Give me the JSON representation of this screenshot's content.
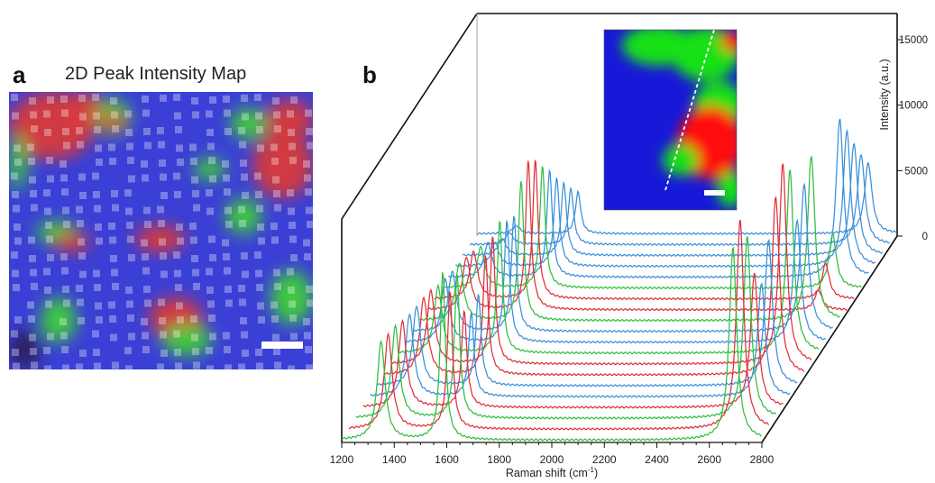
{
  "panel_a": {
    "letter": "a",
    "title": "2D Peak Intensity Map",
    "colors": {
      "low": "#3a3fd6",
      "mid": "#3fcf3a",
      "high": "#d83a3a",
      "edge": "#2b1c5c"
    }
  },
  "panel_b": {
    "letter": "b",
    "inset": {
      "colors": {
        "low": "#1818d8",
        "mid": "#18e018",
        "high": "#ff0a0a"
      }
    }
  },
  "chart_data": {
    "type": "line",
    "title": "",
    "xlabel": "Raman shift (cm",
    "xlabel_sup": "-1",
    "xlabel_suffix": ")",
    "ylabel": "Intensity (a.u.)",
    "xlim": [
      1200,
      2800
    ],
    "ylim": [
      0,
      17000
    ],
    "x_ticks": [
      1200,
      1400,
      1600,
      1800,
      2000,
      2200,
      2400,
      2600,
      2800
    ],
    "y_ticks": [
      0,
      5000,
      10000,
      15000
    ],
    "grid": false,
    "legend": "none",
    "spectrum_colors": {
      "blue": "#3a8fd9",
      "red": "#e0303a",
      "green": "#2fbf3f"
    },
    "peaks_cm": {
      "D": 1350,
      "G": 1585,
      "2D": 2690
    },
    "series": [
      {
        "color": "blue",
        "D": 600,
        "G": 3200,
        "2D": 5400
      },
      {
        "color": "blue",
        "D": 900,
        "G": 4300,
        "2D": 6900
      },
      {
        "color": "blue",
        "D": 1300,
        "G": 5600,
        "2D": 8600
      },
      {
        "color": "blue",
        "D": 1800,
        "G": 6800,
        "2D": 10400
      },
      {
        "color": "blue",
        "D": 2600,
        "G": 8200,
        "2D": 12100
      },
      {
        "color": "green",
        "D": 3100,
        "G": 9300,
        "2D": 4100
      },
      {
        "color": "red",
        "D": 3600,
        "G": 10600,
        "2D": 2700
      },
      {
        "color": "red",
        "D": 4000,
        "G": 11400,
        "2D": 1500
      },
      {
        "color": "green",
        "D": 4400,
        "G": 10700,
        "2D": 12600
      },
      {
        "color": "blue",
        "D": 4600,
        "G": 8900,
        "2D": 11300
      },
      {
        "color": "blue",
        "D": 4800,
        "G": 9300,
        "2D": 9300
      },
      {
        "color": "green",
        "D": 5100,
        "G": 10100,
        "2D": 14000
      },
      {
        "color": "red",
        "D": 5600,
        "G": 9700,
        "2D": 15300
      },
      {
        "color": "red",
        "D": 5900,
        "G": 9100,
        "2D": 13600
      },
      {
        "color": "blue",
        "D": 6100,
        "G": 7000,
        "2D": 11200
      },
      {
        "color": "blue",
        "D": 6300,
        "G": 6400,
        "2D": 8700
      },
      {
        "color": "red",
        "D": 6600,
        "G": 7400,
        "2D": 10300
      },
      {
        "color": "green",
        "D": 7000,
        "G": 11000,
        "2D": 13900
      },
      {
        "color": "red",
        "D": 7200,
        "G": 10500,
        "2D": 16000
      },
      {
        "color": "green",
        "D": 7500,
        "G": 12800,
        "2D": 14700
      }
    ]
  }
}
